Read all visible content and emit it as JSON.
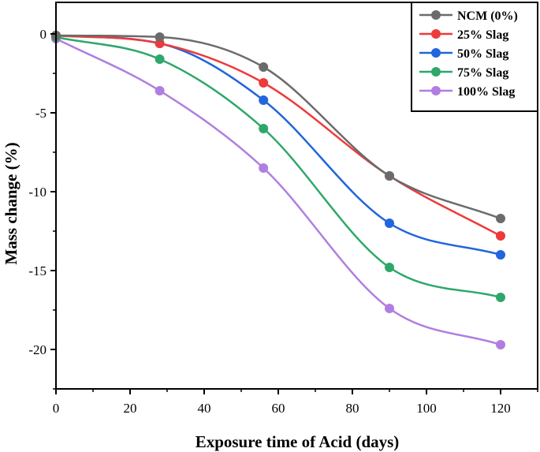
{
  "chart_data": {
    "type": "line",
    "title": "",
    "xlabel": "Exposure time of Acid (days)",
    "ylabel": "Mass change (%)",
    "xlim": [
      0,
      130
    ],
    "ylim": [
      -22.5,
      2
    ],
    "x_ticks": [
      "0",
      "20",
      "40",
      "60",
      "80",
      "100",
      "120"
    ],
    "y_ticks": [
      "0",
      "-5",
      "-10",
      "-15",
      "-20"
    ],
    "x": [
      0,
      28,
      56,
      90,
      120
    ],
    "series": [
      {
        "name": "NCM (0%)",
        "color": "#6b6b6b",
        "values": [
          -0.1,
          -0.2,
          -2.1,
          -9.0,
          -11.7
        ]
      },
      {
        "name": "25% Slag",
        "color": "#ee3a3a",
        "values": [
          -0.1,
          -0.6,
          -3.1,
          -9.0,
          -12.8
        ]
      },
      {
        "name": "50% Slag",
        "color": "#2166dd",
        "values": [
          -0.1,
          -0.6,
          -4.2,
          -12.0,
          -14.0
        ]
      },
      {
        "name": "75% Slag",
        "color": "#2ea86a",
        "values": [
          -0.2,
          -1.6,
          -6.0,
          -14.8,
          -16.7
        ]
      },
      {
        "name": "100% Slag",
        "color": "#b07ee0",
        "values": [
          -0.3,
          -3.6,
          -8.5,
          -17.4,
          -19.7
        ]
      }
    ],
    "legend_position": "top-right"
  }
}
